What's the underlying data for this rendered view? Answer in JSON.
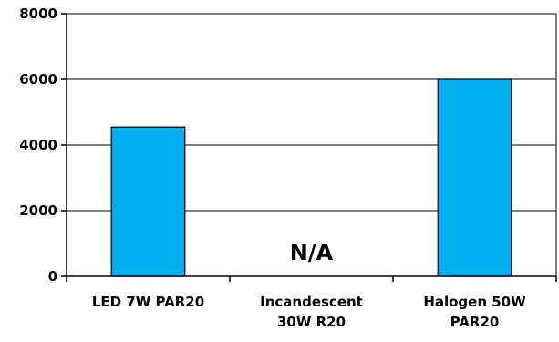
{
  "chart_data": {
    "type": "bar",
    "categories": [
      [
        "LED  7W  PAR20"
      ],
      [
        "Incandescent",
        "30W  R20"
      ],
      [
        "Halogen  50W",
        "PAR20"
      ]
    ],
    "values": [
      4550,
      null,
      6000
    ],
    "annotations": [
      "",
      "N/A",
      ""
    ],
    "title": "",
    "xlabel": "",
    "ylabel": "",
    "ylim": [
      0,
      8000
    ],
    "yticks": [
      "0",
      "2000",
      "4000",
      "6000",
      "8000"
    ],
    "grid": true,
    "legend": "none",
    "bar_color": "#00AEEF",
    "bar_outline": "#000000"
  }
}
